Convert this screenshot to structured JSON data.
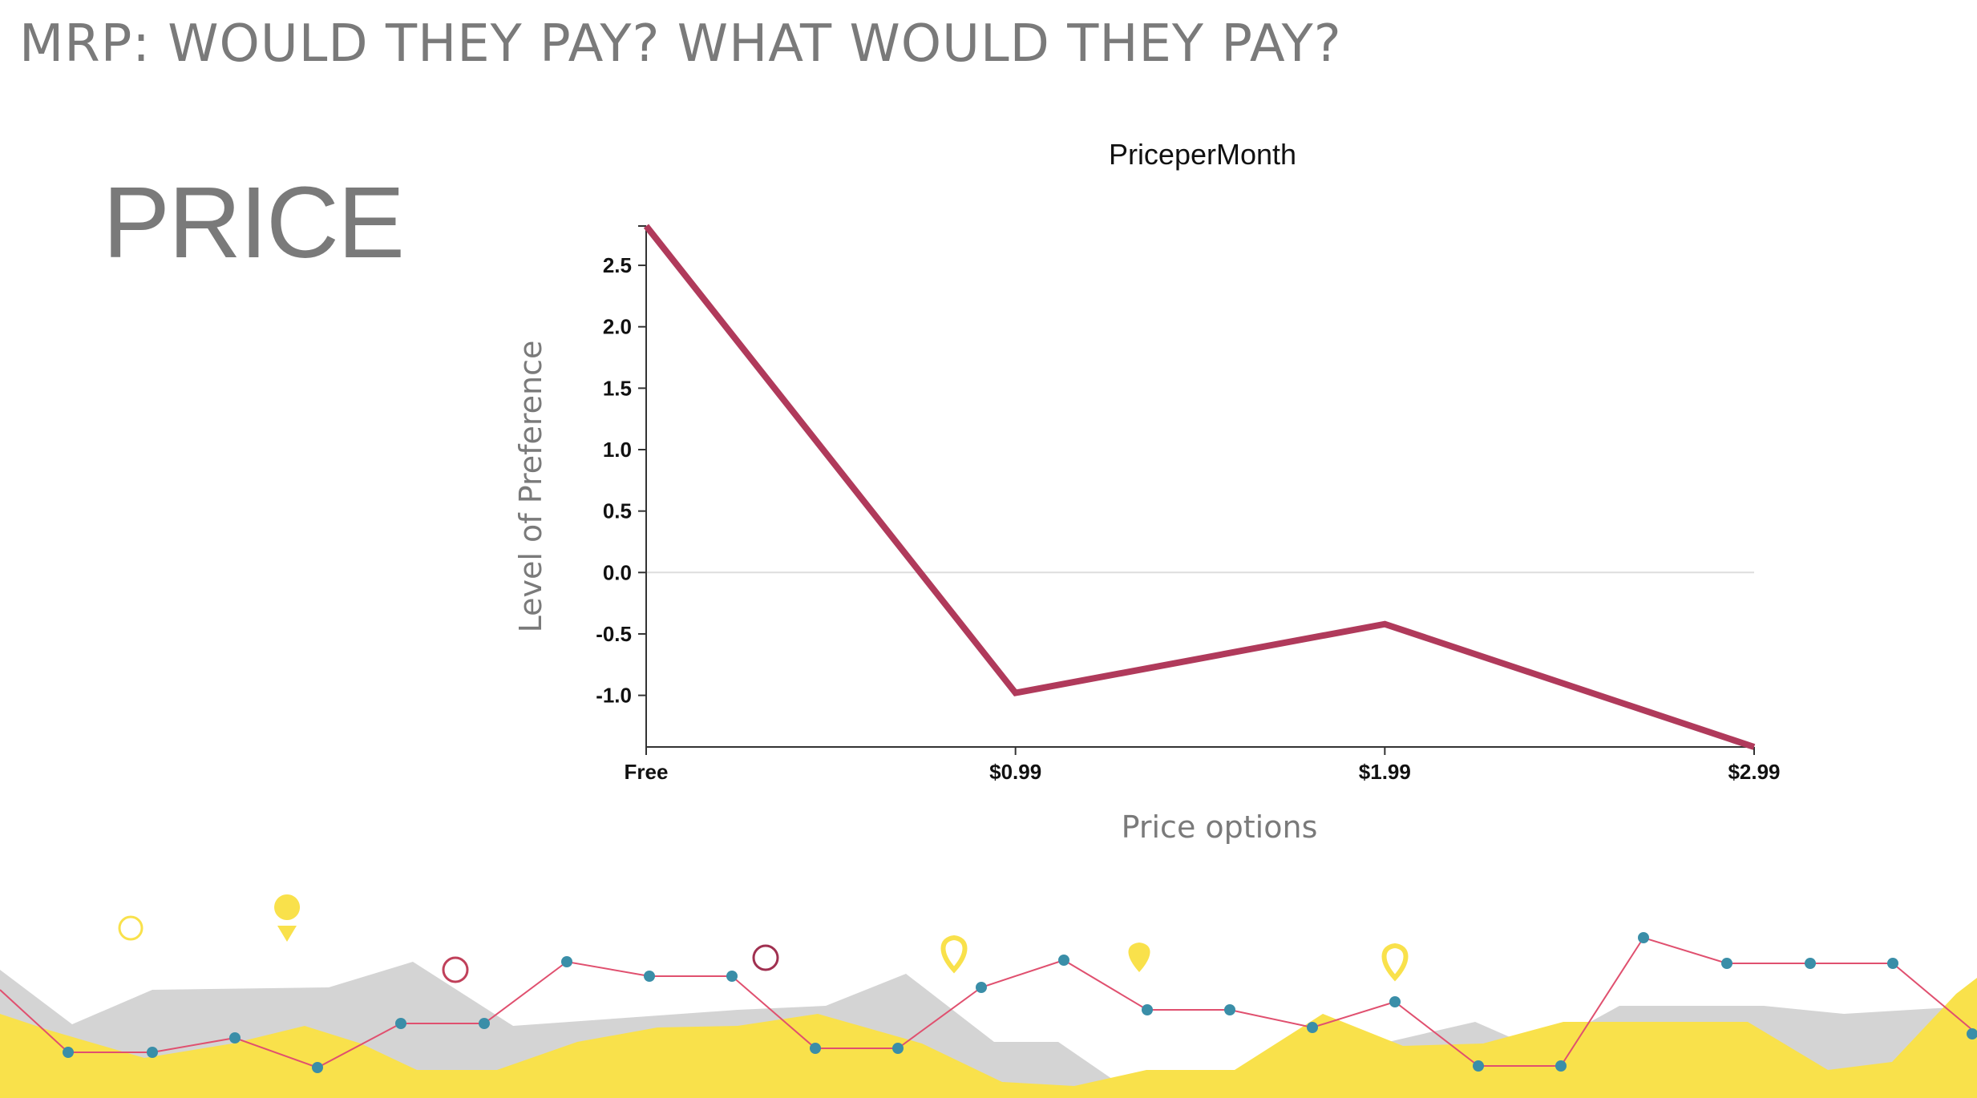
{
  "slide": {
    "title": "MRP: WOULD THEY PAY? WHAT WOULD THEY PAY?",
    "heading": "PRICE"
  },
  "chart_data": {
    "type": "line",
    "title": "PriceperMonth",
    "xlabel": "Price options",
    "ylabel": "Level of Preference",
    "categories": [
      "Free",
      "$0.99",
      "$1.99",
      "$2.99"
    ],
    "series": [
      {
        "values": [
          2.82,
          -0.98,
          -0.42,
          -1.42
        ],
        "color": "#b03a5b"
      }
    ],
    "yticks": [
      "2.5",
      "2.0",
      "1.5",
      "1.0",
      "0.5",
      "0.0",
      "-0.5",
      "-1.0"
    ],
    "ytick_values": [
      2.5,
      2.0,
      1.5,
      1.0,
      0.5,
      0.0,
      -0.5,
      -1.0
    ],
    "ylim": [
      -1.42,
      2.82
    ],
    "zero_line": true,
    "grid": false
  },
  "colors": {
    "text_gray": "#7a7a7a",
    "line": "#b03a5b",
    "yellow": "#f9e14b",
    "light_gray": "#d4d4d4",
    "teal_dot": "#3a8ea8",
    "pink_line": "#e0506f",
    "circle_red": "#c0405a"
  }
}
